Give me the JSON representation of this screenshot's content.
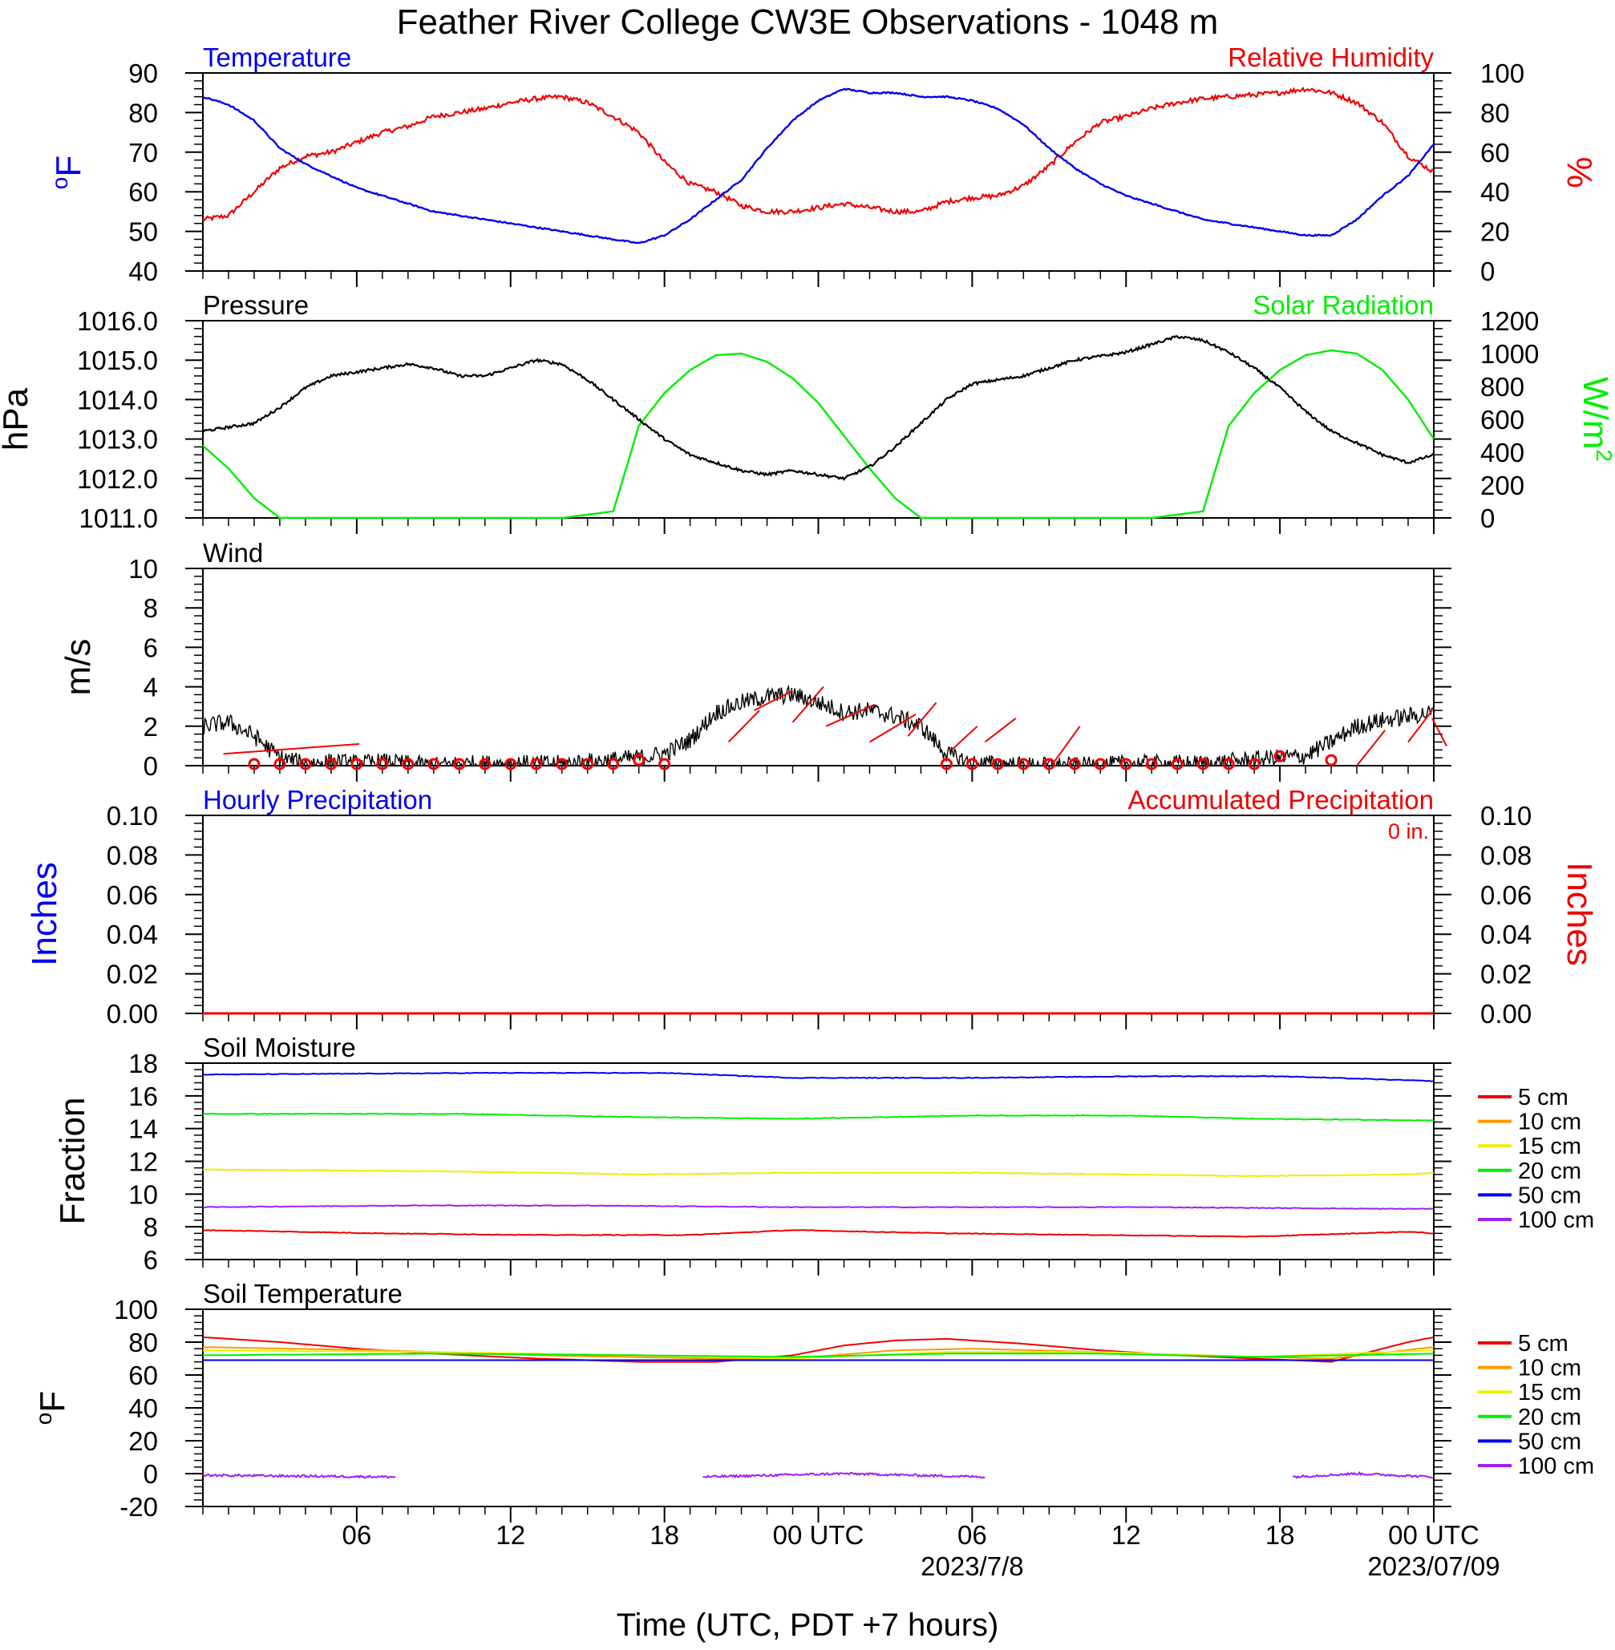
{
  "title": "Feather River College CW3E Observations - 1048 m",
  "x_axis": {
    "label": "Time (UTC, PDT +7 hours)",
    "tick_labels": [
      "06",
      "12",
      "18",
      "00 UTC",
      "06",
      "12",
      "18",
      "00 UTC"
    ],
    "date_labels": [
      "2023/7/8",
      "2023/07/09"
    ],
    "range_hours": [
      -5,
      43
    ]
  },
  "colors": {
    "blue": "#0000ee",
    "red": "#ee0000",
    "green": "#00ee00",
    "black": "#000000",
    "orange": "#ff9900",
    "yellow": "#eeee00",
    "purple": "#a020f0"
  },
  "panels": {
    "temp_rh": {
      "left_title": "Temperature",
      "right_title": "Relative Humidity",
      "left_unit": "oF",
      "right_unit": "%",
      "left_ticks": [
        "40",
        "50",
        "60",
        "70",
        "80",
        "90"
      ],
      "right_ticks": [
        "0",
        "20",
        "40",
        "60",
        "80",
        "100"
      ]
    },
    "pressure_solar": {
      "left_title": "Pressure",
      "right_title": "Solar Radiation",
      "left_unit": "hPa",
      "right_unit": "W/m2",
      "left_ticks": [
        "1011.0",
        "1012.0",
        "1013.0",
        "1014.0",
        "1015.0",
        "1016.0"
      ],
      "right_ticks": [
        "0",
        "200",
        "400",
        "600",
        "800",
        "1000",
        "1200"
      ]
    },
    "wind": {
      "left_title": "Wind",
      "left_unit": "m/s",
      "left_ticks": [
        "0",
        "2",
        "4",
        "6",
        "8",
        "10"
      ]
    },
    "precip": {
      "left_title": "Hourly Precipitation",
      "right_title": "Accumulated Precipitation",
      "left_unit": "Inches",
      "right_unit": "Inches",
      "total": "0 in.",
      "left_ticks": [
        "0.00",
        "0.02",
        "0.04",
        "0.06",
        "0.08",
        "0.10"
      ],
      "right_ticks": [
        "0.00",
        "0.02",
        "0.04",
        "0.06",
        "0.08",
        "0.10"
      ]
    },
    "soil_moisture": {
      "left_title": "Soil Moisture",
      "left_unit": "Fraction",
      "left_ticks": [
        "6",
        "8",
        "10",
        "12",
        "14",
        "16",
        "18"
      ],
      "legend": [
        "5 cm",
        "10 cm",
        "15 cm",
        "20 cm",
        "50 cm",
        "100 cm"
      ]
    },
    "soil_temp": {
      "left_title": "Soil Temperature",
      "left_unit": "oF",
      "left_ticks": [
        "-20",
        "0",
        "20",
        "40",
        "60",
        "80",
        "100"
      ],
      "legend": [
        "5 cm",
        "10 cm",
        "15 cm",
        "20 cm",
        "50 cm",
        "100 cm"
      ]
    }
  },
  "chart_data": [
    {
      "type": "line",
      "title": "Temperature / Relative Humidity",
      "x_unit": "hours UTC since 2023-07-08 00Z",
      "ylim": [
        40,
        90
      ],
      "y2lim": [
        0,
        100
      ],
      "series": [
        {
          "name": "Temperature",
          "color": "blue",
          "axis": "left",
          "x": [
            -5,
            -4,
            -3,
            -2,
            -1,
            0,
            1,
            2,
            3,
            4,
            5,
            6,
            7,
            8,
            9,
            10,
            11,
            12,
            13,
            14,
            15,
            16,
            17,
            18,
            19,
            20,
            21,
            22,
            23,
            24,
            25,
            26,
            27,
            28,
            29,
            30,
            31,
            32,
            33,
            34,
            35,
            36,
            37,
            38,
            39,
            40,
            41,
            42,
            43
          ],
          "values": [
            84,
            82,
            78,
            71,
            67,
            64,
            61,
            59,
            57,
            55,
            54,
            53,
            52,
            51,
            50,
            49,
            48,
            47,
            49,
            53,
            58,
            63,
            71,
            78,
            83,
            86,
            85,
            85,
            84,
            84,
            83,
            81,
            77,
            71,
            66,
            62,
            59,
            57,
            55,
            53,
            52,
            51,
            50,
            49,
            49,
            53,
            59,
            64,
            72
          ]
        },
        {
          "name": "Relative Humidity",
          "color": "red",
          "axis": "right",
          "x": [
            -5,
            -4,
            -3,
            -2,
            -1,
            0,
            1,
            2,
            3,
            4,
            5,
            6,
            7,
            8,
            9,
            10,
            11,
            12,
            13,
            14,
            15,
            16,
            17,
            18,
            19,
            20,
            21,
            22,
            23,
            24,
            25,
            26,
            27,
            28,
            29,
            30,
            31,
            32,
            33,
            34,
            35,
            36,
            37,
            38,
            39,
            40,
            41,
            42,
            43
          ],
          "values": [
            26,
            28,
            40,
            52,
            58,
            60,
            65,
            70,
            73,
            78,
            80,
            82,
            85,
            87,
            88,
            85,
            78,
            70,
            55,
            44,
            40,
            33,
            30,
            30,
            32,
            34,
            32,
            30,
            30,
            35,
            37,
            38,
            43,
            53,
            65,
            75,
            78,
            82,
            85,
            87,
            88,
            89,
            90,
            92,
            90,
            85,
            75,
            58,
            50
          ]
        }
      ]
    },
    {
      "type": "line",
      "title": "Pressure / Solar Radiation",
      "ylim": [
        1011.0,
        1016.0
      ],
      "y2lim": [
        0,
        1200
      ],
      "series": [
        {
          "name": "Pressure",
          "color": "black",
          "axis": "left",
          "x": [
            -5,
            -4,
            -3,
            -2,
            -1,
            0,
            1,
            2,
            3,
            4,
            5,
            6,
            7,
            8,
            9,
            10,
            11,
            12,
            13,
            14,
            15,
            16,
            17,
            18,
            19,
            20,
            21,
            22,
            23,
            24,
            25,
            26,
            27,
            28,
            29,
            30,
            31,
            32,
            33,
            34,
            35,
            36,
            37,
            38,
            39,
            40,
            41,
            42,
            43
          ],
          "values": [
            1013.2,
            1013.3,
            1013.4,
            1013.8,
            1014.3,
            1014.6,
            1014.7,
            1014.8,
            1014.9,
            1014.8,
            1014.6,
            1014.6,
            1014.8,
            1015.0,
            1014.9,
            1014.5,
            1014.0,
            1013.5,
            1013.0,
            1012.6,
            1012.4,
            1012.2,
            1012.1,
            1012.2,
            1012.1,
            1012.0,
            1012.3,
            1012.8,
            1013.4,
            1014.0,
            1014.4,
            1014.5,
            1014.6,
            1014.8,
            1015.0,
            1015.1,
            1015.2,
            1015.4,
            1015.6,
            1015.5,
            1015.2,
            1014.8,
            1014.3,
            1013.7,
            1013.2,
            1012.9,
            1012.6,
            1012.4,
            1012.6
          ]
        },
        {
          "name": "Solar Radiation",
          "color": "green",
          "axis": "right",
          "x": [
            -5,
            -4,
            -3,
            -2,
            -1,
            0,
            1,
            2,
            3,
            4,
            5,
            6,
            7,
            8,
            9,
            10,
            11,
            12,
            13,
            14,
            15,
            16,
            17,
            18,
            19,
            20,
            21,
            22,
            23,
            24,
            25,
            26,
            27,
            28,
            29,
            30,
            31,
            32,
            33,
            34,
            35,
            36,
            37,
            38,
            39,
            40,
            41,
            42,
            43
          ],
          "values": [
            440,
            300,
            120,
            0,
            0,
            0,
            0,
            0,
            0,
            0,
            0,
            0,
            0,
            0,
            0,
            20,
            40,
            560,
            760,
            900,
            990,
            1000,
            950,
            850,
            700,
            500,
            300,
            120,
            0,
            0,
            0,
            0,
            0,
            0,
            0,
            0,
            0,
            0,
            20,
            40,
            560,
            760,
            900,
            990,
            1020,
            1000,
            900,
            720,
            480
          ]
        }
      ]
    },
    {
      "type": "line",
      "title": "Wind",
      "ylim": [
        0,
        10
      ],
      "series": [
        {
          "name": "Wind speed",
          "color": "black",
          "x": [
            -5,
            -4,
            -3,
            -2,
            -1,
            0,
            1,
            2,
            3,
            4,
            5,
            6,
            7,
            8,
            9,
            10,
            11,
            12,
            13,
            14,
            15,
            16,
            17,
            18,
            19,
            20,
            21,
            22,
            23,
            24,
            25,
            26,
            27,
            28,
            29,
            30,
            31,
            32,
            33,
            34,
            35,
            36,
            37,
            38,
            39,
            40,
            41,
            42,
            43
          ],
          "values": [
            2.0,
            2.2,
            1.5,
            0.4,
            0.1,
            0.2,
            0.1,
            0.2,
            0.1,
            0.0,
            0.1,
            0.1,
            0.1,
            0.1,
            0.1,
            0.2,
            0.3,
            0.4,
            0.6,
            1.3,
            2.7,
            3.2,
            3.5,
            3.6,
            3.2,
            2.7,
            2.8,
            2.5,
            2.0,
            0.6,
            0.1,
            0.1,
            0.0,
            0.0,
            0.0,
            0.0,
            0.1,
            0.1,
            0.1,
            0.1,
            0.2,
            0.3,
            0.4,
            0.5,
            1.2,
            2.0,
            2.3,
            2.5,
            2.7
          ]
        },
        {
          "name": "Calm markers",
          "color": "red",
          "x": [
            -3,
            -2,
            -1,
            0,
            1,
            2,
            3,
            4,
            5,
            6,
            7,
            8,
            9,
            10,
            11,
            12,
            13,
            24,
            25,
            26,
            27,
            28,
            29,
            30,
            31,
            32,
            33,
            34,
            35,
            36,
            37,
            39
          ],
          "values": [
            0,
            0,
            0,
            0,
            0,
            0,
            0,
            0,
            0,
            0,
            0,
            0,
            0,
            0,
            0,
            0.2,
            0,
            0,
            0,
            0,
            0,
            0,
            0,
            0,
            0,
            0,
            0,
            0,
            0,
            0,
            0.4,
            0.2
          ]
        }
      ]
    },
    {
      "type": "bar",
      "title": "Hourly / Accumulated Precipitation",
      "ylim": [
        0,
        0.1
      ],
      "series": [
        {
          "name": "Hourly Precipitation",
          "color": "blue",
          "x": [
            -5,
            43
          ],
          "values": [
            0,
            0
          ]
        },
        {
          "name": "Accumulated Precipitation",
          "color": "red",
          "x": [
            -5,
            43
          ],
          "values": [
            0,
            0
          ]
        }
      ]
    },
    {
      "type": "line",
      "title": "Soil Moisture",
      "ylim": [
        6,
        18
      ],
      "series": [
        {
          "name": "5 cm",
          "color": "red",
          "x": [
            -5,
            2,
            8,
            14,
            18,
            24,
            30,
            36,
            42,
            43
          ],
          "values": [
            7.8,
            7.6,
            7.5,
            7.5,
            7.8,
            7.6,
            7.5,
            7.4,
            7.7,
            7.6
          ]
        },
        {
          "name": "100 cm",
          "color": "purple",
          "x": [
            -5,
            3,
            10,
            18,
            25,
            32,
            41,
            43
          ],
          "values": [
            9.2,
            9.3,
            9.3,
            9.2,
            9.2,
            9.2,
            9.1,
            9.1
          ]
        },
        {
          "name": "15 cm",
          "color": "yellow",
          "x": [
            -5,
            4,
            12,
            18,
            25,
            31,
            36,
            42,
            43
          ],
          "values": [
            11.5,
            11.4,
            11.2,
            11.3,
            11.3,
            11.2,
            11.1,
            11.2,
            11.3
          ]
        },
        {
          "name": "20 cm",
          "color": "green",
          "x": [
            -5,
            5,
            12,
            18,
            25,
            31,
            36,
            43
          ],
          "values": [
            14.9,
            14.9,
            14.7,
            14.6,
            14.8,
            14.8,
            14.6,
            14.5
          ]
        },
        {
          "name": "50 cm",
          "color": "blue",
          "x": [
            -5,
            6,
            13,
            18,
            25,
            32,
            37,
            43
          ],
          "values": [
            17.3,
            17.4,
            17.4,
            17.1,
            17.1,
            17.2,
            17.2,
            16.9
          ]
        }
      ]
    },
    {
      "type": "line",
      "title": "Soil Temperature",
      "ylim": [
        -20,
        100
      ],
      "series": [
        {
          "name": "5 cm",
          "color": "red",
          "x": [
            -5,
            -2,
            1,
            4,
            8,
            12,
            15,
            18,
            20,
            22,
            24,
            27,
            30,
            33,
            36,
            39,
            42,
            43
          ],
          "values": [
            83,
            80,
            76,
            73,
            70,
            68,
            68,
            72,
            78,
            81,
            82,
            79,
            75,
            72,
            70,
            68,
            80,
            83
          ]
        },
        {
          "name": "10 cm",
          "color": "orange",
          "x": [
            -5,
            2,
            8,
            15,
            18,
            22,
            25,
            30,
            36,
            39,
            43
          ],
          "values": [
            77,
            75,
            72,
            70,
            70,
            75,
            76,
            74,
            71,
            70,
            77
          ]
        },
        {
          "name": "15 cm",
          "color": "yellow",
          "x": [
            -5,
            4,
            12,
            18,
            24,
            30,
            36,
            43
          ],
          "values": [
            75,
            74,
            72,
            70,
            74,
            74,
            71,
            75
          ]
        },
        {
          "name": "20 cm",
          "color": "green",
          "x": [
            -5,
            4,
            12,
            18,
            24,
            30,
            36,
            43
          ],
          "values": [
            72,
            73,
            72,
            71,
            73,
            73,
            71,
            73
          ]
        },
        {
          "name": "50 cm",
          "color": "blue",
          "x": [
            -5,
            12,
            24,
            36,
            43
          ],
          "values": [
            69,
            69,
            69,
            69,
            69
          ]
        },
        {
          "name": "100 cm",
          "color": "purple",
          "x": [
            -5,
            2.5,
            14.5,
            20,
            25.5,
            37.5,
            40,
            43
          ],
          "values": [
            -1,
            -2,
            -2,
            0,
            -2,
            -2,
            0,
            -2
          ]
        }
      ]
    }
  ]
}
